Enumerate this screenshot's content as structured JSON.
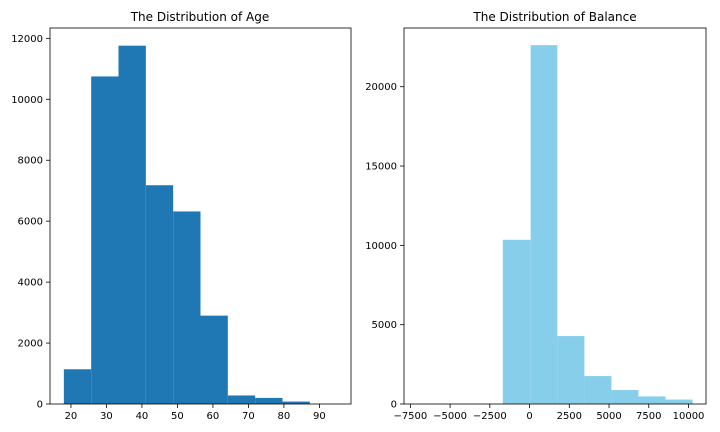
{
  "chart_data": [
    {
      "type": "bar",
      "title": "The Distribution of Age",
      "xlabel": "",
      "ylabel": "",
      "color": "#1f77b4",
      "bins": [
        {
          "start": 18.0,
          "end": 25.7,
          "count": 1140
        },
        {
          "start": 25.7,
          "end": 33.4,
          "count": 10750
        },
        {
          "start": 33.4,
          "end": 41.1,
          "count": 11760
        },
        {
          "start": 41.1,
          "end": 48.8,
          "count": 7180
        },
        {
          "start": 48.8,
          "end": 56.5,
          "count": 6320
        },
        {
          "start": 56.5,
          "end": 64.2,
          "count": 2900
        },
        {
          "start": 64.2,
          "end": 71.9,
          "count": 280
        },
        {
          "start": 71.9,
          "end": 79.6,
          "count": 200
        },
        {
          "start": 79.6,
          "end": 87.3,
          "count": 80
        },
        {
          "start": 87.3,
          "end": 95.0,
          "count": 0
        }
      ],
      "xlim": [
        14.1,
        98.9
      ],
      "ylim": [
        0,
        12340
      ],
      "xticks": [
        20,
        30,
        40,
        50,
        60,
        70,
        80,
        90
      ],
      "yticks": [
        0,
        2000,
        4000,
        6000,
        8000,
        10000,
        12000
      ],
      "grid": false
    },
    {
      "type": "bar",
      "title": "The Distribution of Balance",
      "xlabel": "",
      "ylabel": "",
      "color": "#87ceeb",
      "bins": [
        {
          "start": -8019,
          "end": -6165,
          "count": 0
        },
        {
          "start": -6165,
          "end": -4310,
          "count": 0
        },
        {
          "start": -4310,
          "end": -2455,
          "count": 0
        },
        {
          "start": -2455,
          "end": -1680,
          "count": 0
        },
        {
          "start": -1680,
          "end": 70,
          "count": 10350
        },
        {
          "start": 70,
          "end": 1750,
          "count": 22620
        },
        {
          "start": 1750,
          "end": 3450,
          "count": 4280
        },
        {
          "start": 3450,
          "end": 5150,
          "count": 1760
        },
        {
          "start": 5150,
          "end": 6850,
          "count": 880
        },
        {
          "start": 6850,
          "end": 8550,
          "count": 480
        },
        {
          "start": 8550,
          "end": 10250,
          "count": 280
        }
      ],
      "xlim": [
        -7900,
        11100
      ],
      "ylim": [
        0,
        23700
      ],
      "xticks": [
        -7500,
        -5000,
        -2500,
        0,
        2500,
        5000,
        7500,
        10000
      ],
      "yticks": [
        0,
        5000,
        10000,
        15000,
        20000
      ],
      "grid": false
    }
  ]
}
